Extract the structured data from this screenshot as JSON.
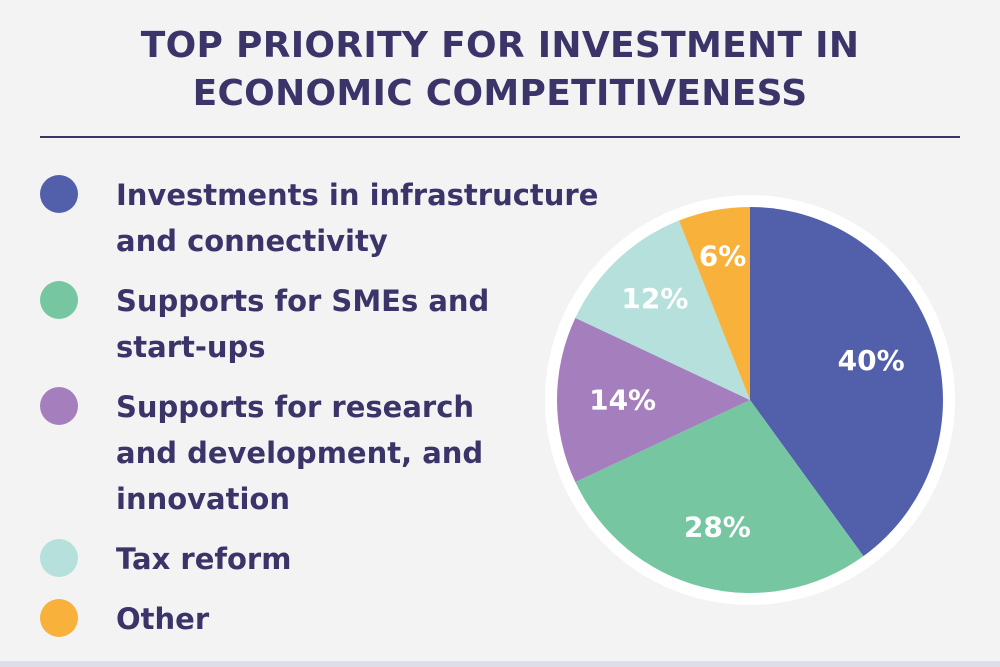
{
  "title_lines": [
    "TOP PRIORITY FOR INVESTMENT IN",
    "ECONOMIC COMPETITIVENESS"
  ],
  "legend": [
    {
      "lines": [
        "Investments in infrastructure",
        "and connectivity"
      ],
      "color": "#525fab"
    },
    {
      "lines": [
        "Supports for SMEs and",
        "start-ups"
      ],
      "color": "#76c7a1"
    },
    {
      "lines": [
        "Supports for research",
        "and development, and",
        "innovation"
      ],
      "color": "#a57fbd"
    },
    {
      "lines": [
        "Tax reform"
      ],
      "color": "#b5e0db"
    },
    {
      "lines": [
        "Other"
      ],
      "color": "#f8b13a"
    }
  ],
  "chart_data": {
    "type": "pie",
    "title": "TOP PRIORITY FOR INVESTMENT IN ECONOMIC COMPETITIVENESS",
    "categories": [
      "Investments in infrastructure and connectivity",
      "Supports for SMEs and start-ups",
      "Supports for research and development, and innovation",
      "Tax reform",
      "Other"
    ],
    "values": [
      40,
      28,
      14,
      12,
      6
    ],
    "labels": [
      "40%",
      "28%",
      "14%",
      "12%",
      "6%"
    ],
    "colors": [
      "#525fab",
      "#76c7a1",
      "#a57fbd",
      "#b5e0db",
      "#f8b13a"
    ],
    "start": "12 o'clock",
    "direction": "clockwise",
    "legend_position": "left"
  }
}
